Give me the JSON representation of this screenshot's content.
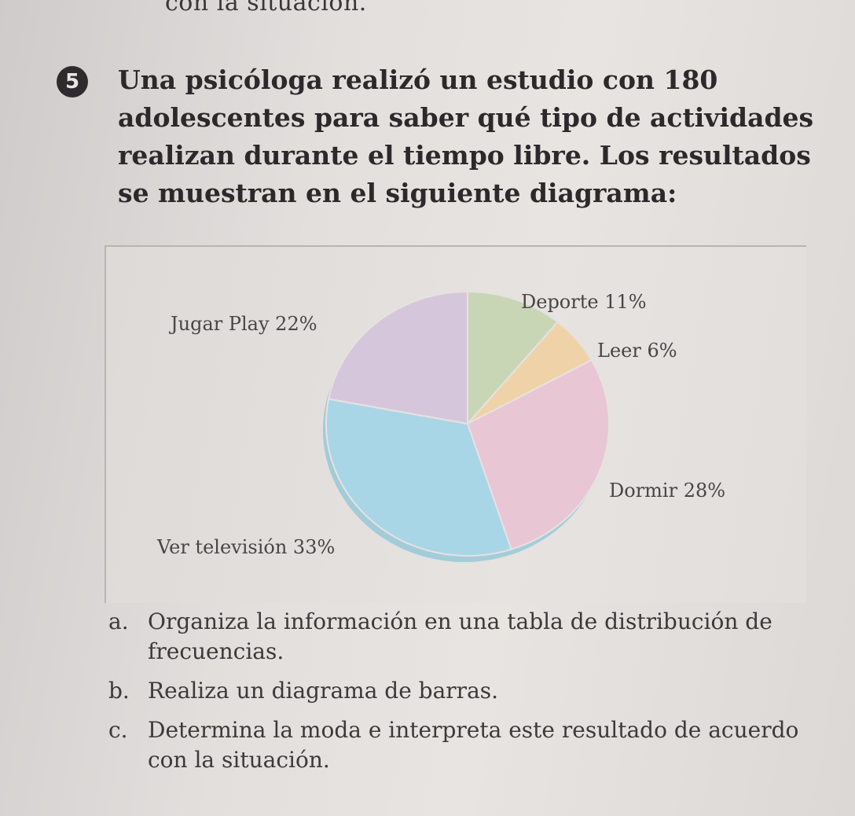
{
  "top_fragment": "con la situación.",
  "problem": {
    "number": "5",
    "statement": "Una psicóloga realizó un estudio con 180 adolescentes para saber qué tipo de actividades realizan durante el tiempo libre. Los resultados se muestran en el siguiente diagrama:"
  },
  "chart_data": {
    "type": "pie",
    "slices": [
      {
        "label": "Deporte 11%",
        "category": "Deporte",
        "value": 11,
        "color": "#c9d6b6"
      },
      {
        "label": "Leer 6%",
        "category": "Leer",
        "value": 6,
        "color": "#f0d2a8"
      },
      {
        "label": "Dormir 28%",
        "category": "Dormir",
        "value": 28,
        "color": "#e8c6d4"
      },
      {
        "label": "Ver televisión 33%",
        "category": "Ver televisión",
        "value": 33,
        "color": "#a9d6e6"
      },
      {
        "label": "Jugar Play 22%",
        "category": "Jugar Play",
        "value": 22,
        "color": "#d6c6dc"
      }
    ]
  },
  "questions": [
    {
      "letter": "a.",
      "text": "Organiza la información en una tabla de distribución de frecuencias."
    },
    {
      "letter": "b.",
      "text": "Realiza un diagrama de barras."
    },
    {
      "letter": "c.",
      "text": "Determina la moda e interpreta este resultado de acuerdo con la situación."
    }
  ]
}
